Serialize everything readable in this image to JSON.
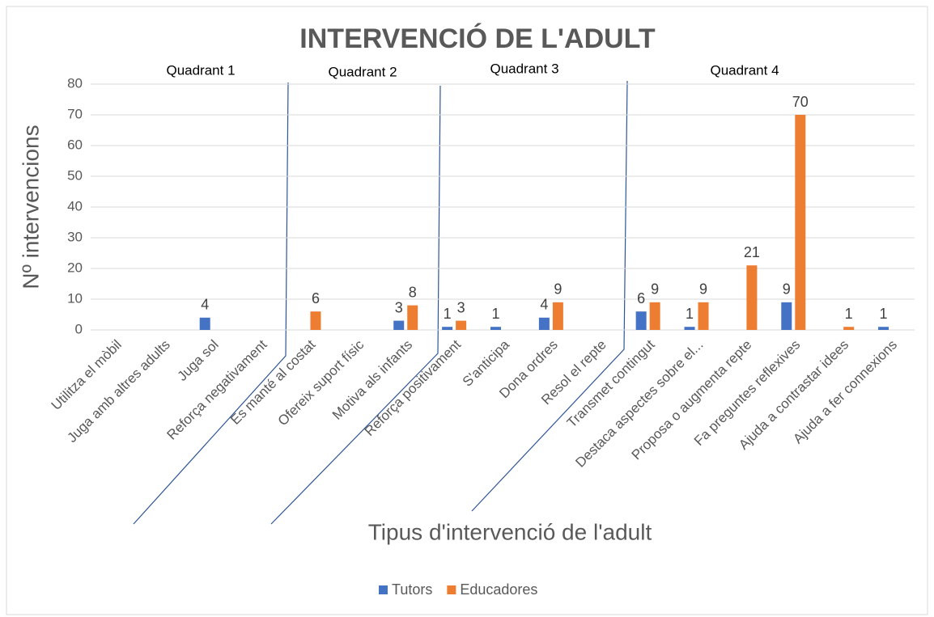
{
  "chart_data": {
    "type": "bar",
    "title": "INTERVENCIÓ DE L'ADULT",
    "y_label": "Nº intervencions",
    "x_label": "Tipus d'intervenció de l'adult",
    "annotations": [
      "Quadrant 1",
      "Quadrant 2",
      "Quadrant 3",
      "Quadrant 4"
    ],
    "categories": [
      "Utilitza el mòbil",
      "Juga amb altres adults",
      "Juga sol",
      "Reforça negativament",
      "Es manté al costat",
      "Ofereix suport físic",
      "Motiva als infants",
      "Reforça positivament",
      "S'anticipa",
      "Dona ordres",
      "Resol el repte",
      "Transmet contingut",
      "Destaca aspectes sobre el...",
      "Proposa o augmenta repte",
      "Fa preguntes reflexives",
      "Ajuda a contrastar idees",
      "Ajuda a fer connexions"
    ],
    "series": [
      {
        "name": "Tutors",
        "color": "#4472c4",
        "values": [
          null,
          null,
          4,
          null,
          null,
          null,
          3,
          1,
          1,
          4,
          null,
          6,
          1,
          null,
          9,
          null,
          1
        ]
      },
      {
        "name": "Educadores",
        "color": "#ed7d31",
        "values": [
          null,
          null,
          null,
          null,
          6,
          null,
          8,
          3,
          null,
          9,
          null,
          9,
          9,
          21,
          70,
          1,
          null
        ]
      }
    ],
    "ylim": [
      0,
      80
    ],
    "yticks": [
      0,
      10,
      20,
      30,
      40,
      50,
      60,
      70,
      80
    ],
    "grid": true,
    "legend": "bottom"
  }
}
